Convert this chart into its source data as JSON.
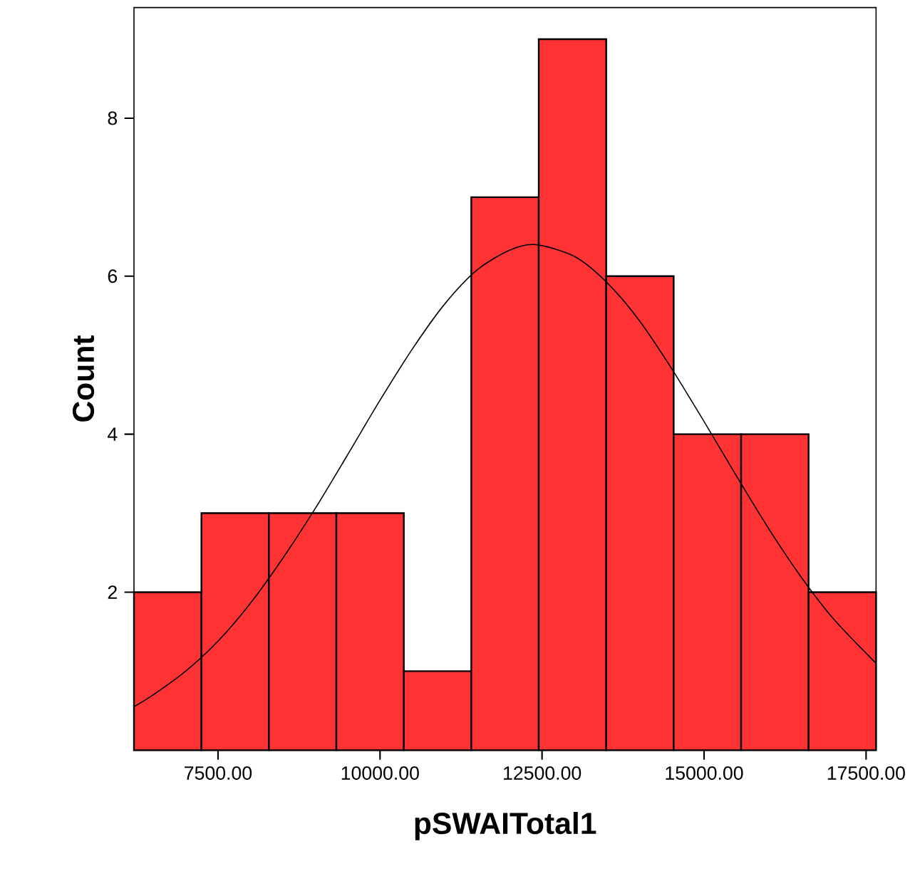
{
  "chart_data": {
    "type": "histogram",
    "xlabel": "pSWAITotal1",
    "ylabel": "Count",
    "series": [
      {
        "color": "#ff3333",
        "bins": [
          6203,
          7244,
          8285,
          9326,
          10367,
          11408,
          12449,
          13490,
          14531,
          15572,
          16613,
          17654
        ],
        "values": [
          2,
          3,
          3,
          3,
          1,
          7,
          9,
          6,
          4,
          4,
          2
        ]
      },
      {
        "type": "line",
        "color": "#000000",
        "x": [
          6203,
          6500,
          7000,
          7500,
          8000,
          8500,
          9000,
          9500,
          10000,
          10500,
          11000,
          11500,
          12000,
          12400,
          13000,
          13500,
          14000,
          14500,
          15000,
          15500,
          16000,
          16500,
          17000,
          17654
        ],
        "values": [
          0.55,
          0.7,
          1.0,
          1.38,
          1.86,
          2.43,
          3.06,
          3.74,
          4.43,
          5.08,
          5.65,
          6.08,
          6.33,
          6.4,
          6.25,
          5.92,
          5.44,
          4.83,
          4.16,
          3.47,
          2.8,
          2.19,
          1.66,
          1.1
        ]
      }
    ],
    "xlim": [
      6203,
      17654
    ],
    "ylim": [
      0,
      9.4
    ],
    "xticks": [
      {
        "value": 7500,
        "label": "7500.00"
      },
      {
        "value": 10000,
        "label": "10000.00"
      },
      {
        "value": 12500,
        "label": "12500.00"
      },
      {
        "value": 15000,
        "label": "15000.00"
      },
      {
        "value": 17500,
        "label": "17500.00"
      }
    ],
    "yticks": [
      2,
      4,
      6,
      8
    ],
    "grid": false
  }
}
